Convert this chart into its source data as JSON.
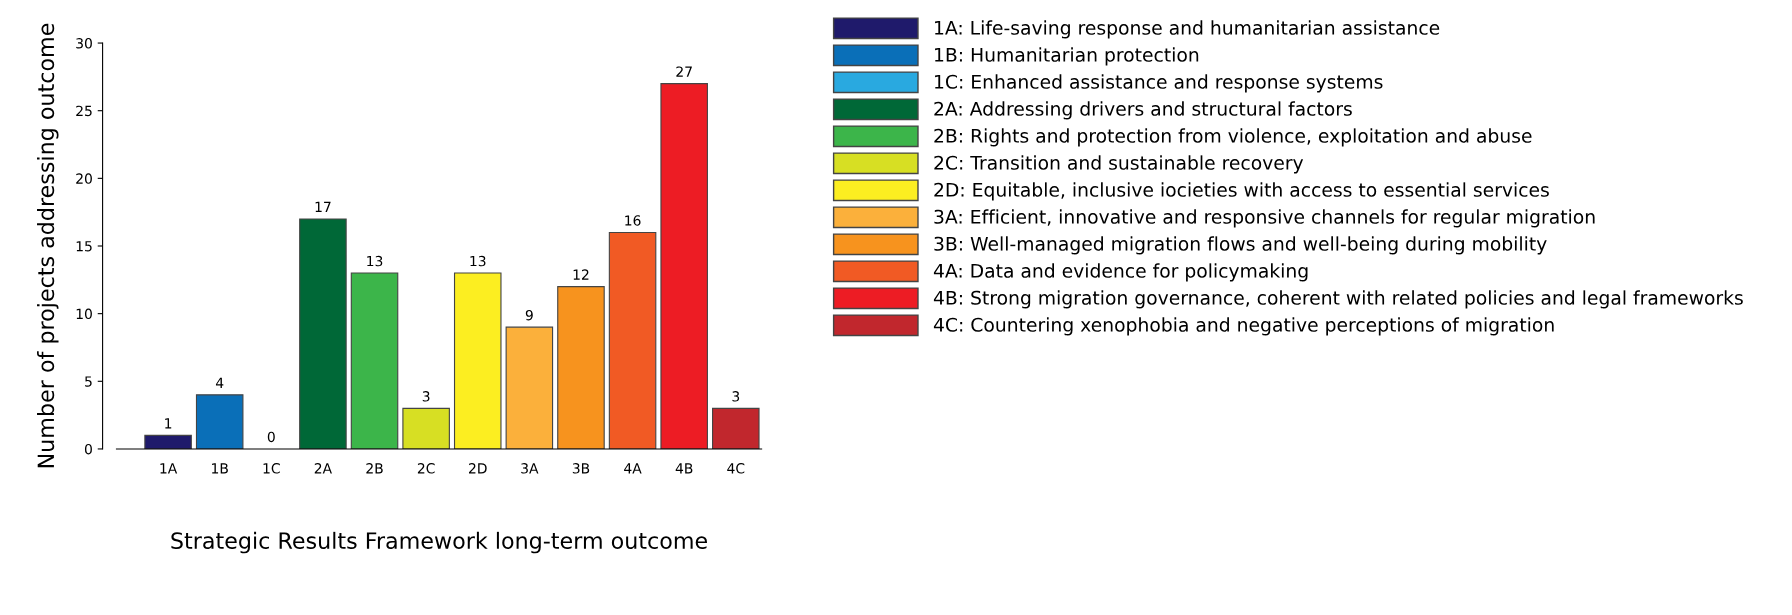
{
  "chart_data": {
    "type": "bar",
    "stacked": true,
    "data_labels": true,
    "legend": "right",
    "grid": false,
    "xlabel": "Strategic Results Framework long-term outcome",
    "ylabel": "Number of projects addressing outcome",
    "categories": [
      "1A",
      "1B",
      "1C",
      "2A",
      "2B",
      "2C",
      "2D",
      "3A",
      "3B",
      "4A",
      "4B",
      "4C"
    ],
    "ylim": [
      0,
      30
    ],
    "yticks": [
      0,
      5,
      10,
      15,
      20,
      25,
      30
    ],
    "series": [
      {
        "name": "1A: Life-saving response and humanitarian assistance",
        "color": "#1f1a6b",
        "values": [
          1,
          null,
          null,
          null,
          null,
          null,
          null,
          null,
          null,
          null,
          null,
          null
        ]
      },
      {
        "name": "1B: Humanitarian protection",
        "color": "#0a6fb8",
        "values": [
          null,
          4,
          null,
          null,
          null,
          null,
          null,
          null,
          null,
          null,
          null,
          null
        ]
      },
      {
        "name": "1C: Enhanced assistance and response systems",
        "color": "#29a9e0",
        "values": [
          null,
          null,
          0,
          null,
          null,
          null,
          null,
          null,
          null,
          null,
          null,
          null
        ]
      },
      {
        "name": "2A: Addressing drivers and structural factors",
        "color": "#006837",
        "values": [
          null,
          null,
          null,
          17,
          null,
          null,
          null,
          null,
          null,
          null,
          null,
          null
        ]
      },
      {
        "name": "2B: Rights and protection from violence, exploitation and abuse",
        "color": "#3cb54a",
        "values": [
          null,
          null,
          null,
          null,
          13,
          null,
          null,
          null,
          null,
          null,
          null,
          null
        ]
      },
      {
        "name": "2C: Transition and sustainable recovery",
        "color": "#d7df23",
        "values": [
          null,
          null,
          null,
          null,
          null,
          3,
          null,
          null,
          null,
          null,
          null,
          null
        ]
      },
      {
        "name": "2D: Equitable, inclusive iocieties with access to essential services",
        "color": "#fcee21",
        "values": [
          null,
          null,
          null,
          null,
          null,
          null,
          13,
          null,
          null,
          null,
          null,
          null
        ]
      },
      {
        "name": "3A: Efficient, innovative and responsive channels for regular migration",
        "color": "#fbb03b",
        "values": [
          null,
          null,
          null,
          null,
          null,
          null,
          null,
          9,
          null,
          null,
          null,
          null
        ]
      },
      {
        "name": "3B: Well-managed migration flows and well-being during mobility",
        "color": "#f7931e",
        "values": [
          null,
          null,
          null,
          null,
          null,
          null,
          null,
          null,
          12,
          null,
          null,
          null
        ]
      },
      {
        "name": "4A: Data and evidence for policymaking",
        "color": "#f15a24",
        "values": [
          null,
          null,
          null,
          null,
          null,
          null,
          null,
          null,
          null,
          16,
          null,
          null
        ]
      },
      {
        "name": "4B: Strong migration governance, coherent with related policies and legal frameworks",
        "color": "#ed1c24",
        "values": [
          null,
          null,
          null,
          null,
          null,
          null,
          null,
          null,
          null,
          null,
          27,
          null
        ]
      },
      {
        "name": "4C: Countering xenophobia and negative perceptions of migration",
        "color": "#c1272d",
        "values": [
          null,
          null,
          null,
          null,
          null,
          null,
          null,
          null,
          null,
          null,
          null,
          3
        ]
      }
    ]
  }
}
